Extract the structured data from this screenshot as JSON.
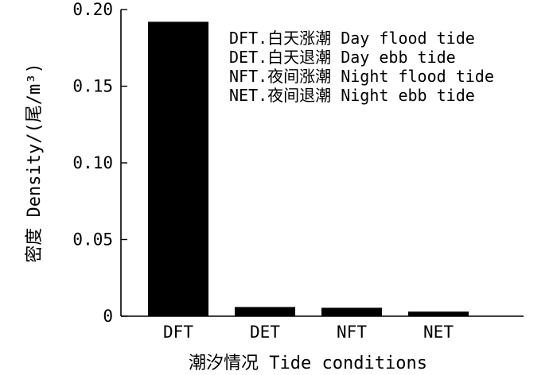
{
  "chart_data": {
    "type": "bar",
    "categories": [
      "DFT",
      "DET",
      "NFT",
      "NET"
    ],
    "values": [
      0.192,
      0.006,
      0.0055,
      0.003
    ],
    "ylim": [
      0,
      0.2
    ],
    "yticks": [
      {
        "value": 0,
        "label": "0"
      },
      {
        "value": 0.05,
        "label": "0.05"
      },
      {
        "value": 0.1,
        "label": "0.10"
      },
      {
        "value": 0.15,
        "label": "0.15"
      },
      {
        "value": 0.2,
        "label": "0.20"
      }
    ],
    "xlabel": "潮汐情况 Tide conditions",
    "ylabel": "密度 Density/(尾/m³)",
    "legend": [
      "DFT.白天涨潮 Day flood tide",
      "DET.白天退潮 Day ebb tide",
      "NFT.夜间涨潮 Night flood tide",
      "NET.夜间退潮 Night ebb tide"
    ],
    "legend_position": "top-right",
    "grid": false,
    "bar_color": "#000000"
  }
}
